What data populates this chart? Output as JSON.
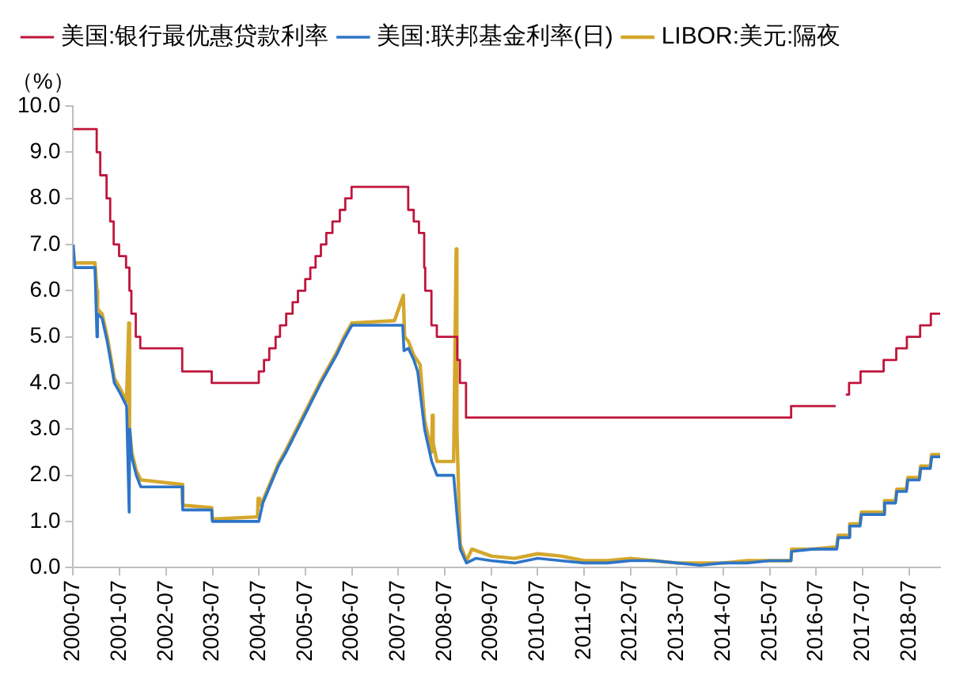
{
  "chart_data": {
    "type": "line",
    "ylabel": "（%）",
    "legend": "top",
    "grid": false,
    "xlim": [
      "2000-07",
      "2019-03"
    ],
    "xticks": [
      "2000-07",
      "2001-07",
      "2002-07",
      "2003-07",
      "2004-07",
      "2005-07",
      "2006-07",
      "2007-07",
      "2008-07",
      "2009-07",
      "2010-07",
      "2011-07",
      "2012-07",
      "2013-07",
      "2014-07",
      "2015-07",
      "2016-07",
      "2017-07",
      "2018-07"
    ],
    "ylim": [
      0,
      10
    ],
    "yticks": [
      {
        "value": 0,
        "label": "0.0"
      },
      {
        "value": 1,
        "label": "1.0"
      },
      {
        "value": 2,
        "label": "2.0"
      },
      {
        "value": 3,
        "label": "3.0"
      },
      {
        "value": 4,
        "label": "4.0"
      },
      {
        "value": 5,
        "label": "5.0"
      },
      {
        "value": 6,
        "label": "6.0"
      },
      {
        "value": 7,
        "label": "7.0"
      },
      {
        "value": 8,
        "label": "8.0"
      },
      {
        "value": 9,
        "label": "9.0"
      },
      {
        "value": 10,
        "label": "10.0"
      }
    ],
    "marker": "none",
    "line_style": "solid",
    "series": [
      {
        "name": "美国:银行最优惠贷款利率",
        "type": "step",
        "color": "#c0143c",
        "x": [
          "2000-07-01",
          "2001-01-03",
          "2001-01-31",
          "2001-03-20",
          "2001-04-18",
          "2001-05-15",
          "2001-06-27",
          "2001-08-21",
          "2001-09-17",
          "2001-10-02",
          "2001-11-06",
          "2001-12-11",
          "2002-11-06",
          "2003-06-25",
          "2004-06-30",
          "2004-08-10",
          "2004-09-21",
          "2004-11-10",
          "2004-12-14",
          "2005-02-02",
          "2005-03-22",
          "2005-05-03",
          "2005-06-30",
          "2005-08-09",
          "2005-09-20",
          "2005-11-01",
          "2005-12-13",
          "2006-01-31",
          "2006-03-28",
          "2006-05-10",
          "2006-06-29",
          "2007-09-18",
          "2007-10-31",
          "2007-12-11",
          "2008-01-22",
          "2008-01-30",
          "2008-03-18",
          "2008-04-30",
          "2008-10-08",
          "2008-10-29",
          "2008-12-16",
          "2015-12-16",
          "2016-12-01",
          "2017-01-15",
          "2017-02-20",
          "2017-03-15",
          "2017-06-14",
          "2017-12-13",
          "2018-03-21",
          "2018-06-13",
          "2018-09-26",
          "2018-12-19",
          "2019-03-01"
        ],
        "values": [
          9.5,
          9.0,
          8.5,
          8.0,
          7.5,
          7.0,
          6.75,
          6.5,
          6.0,
          5.5,
          5.0,
          4.75,
          4.25,
          4.0,
          4.25,
          4.5,
          4.75,
          5.0,
          5.25,
          5.5,
          5.75,
          6.0,
          6.25,
          6.5,
          6.75,
          7.0,
          7.25,
          7.5,
          7.75,
          8.0,
          8.25,
          7.75,
          7.5,
          7.25,
          6.5,
          6.0,
          5.25,
          5.0,
          4.5,
          4.0,
          3.25,
          3.5,
          3.5,
          null,
          3.75,
          4.0,
          4.25,
          4.5,
          4.75,
          5.0,
          5.25,
          5.5,
          5.5
        ]
      },
      {
        "name": "美国:联邦基金利率(日)",
        "color": "#2e75c8",
        "x": [
          "2000-07-01",
          "2000-07-15",
          "2000-12-20",
          "2001-01-05",
          "2001-01-10",
          "2001-02-15",
          "2001-03-25",
          "2001-04-20",
          "2001-05-20",
          "2001-07-01",
          "2001-08-25",
          "2001-09-15",
          "2001-09-20",
          "2001-10-05",
          "2001-11-10",
          "2001-12-15",
          "2002-06-01",
          "2002-11-06",
          "2002-11-10",
          "2003-06-25",
          "2003-06-30",
          "2004-06-30",
          "2004-08-01",
          "2004-10-01",
          "2004-12-01",
          "2005-02-01",
          "2005-05-01",
          "2005-08-01",
          "2005-11-01",
          "2006-01-01",
          "2006-03-01",
          "2006-05-01",
          "2006-07-01",
          "2007-08-05",
          "2007-08-15",
          "2007-09-20",
          "2007-11-01",
          "2007-12-01",
          "2008-01-25",
          "2008-03-20",
          "2008-05-01",
          "2008-09-10",
          "2008-10-10",
          "2008-11-01",
          "2008-12-20",
          "2009-03-01",
          "2009-07-01",
          "2010-01-01",
          "2010-07-01",
          "2011-01-01",
          "2011-07-01",
          "2012-01-01",
          "2012-07-01",
          "2013-01-01",
          "2013-07-01",
          "2014-01-01",
          "2014-07-01",
          "2015-01-01",
          "2015-07-01",
          "2015-12-15",
          "2015-12-20",
          "2016-06-01",
          "2016-12-10",
          "2016-12-20",
          "2017-03-10",
          "2017-03-20",
          "2017-06-10",
          "2017-06-20",
          "2017-12-10",
          "2017-12-20",
          "2018-03-15",
          "2018-03-25",
          "2018-06-10",
          "2018-06-20",
          "2018-09-20",
          "2018-09-30",
          "2018-12-15",
          "2018-12-25",
          "2019-03-01"
        ],
        "values": [
          7.0,
          6.5,
          6.5,
          5.0,
          5.5,
          5.4,
          4.9,
          4.5,
          4.0,
          3.8,
          3.5,
          1.2,
          3.0,
          2.4,
          2.0,
          1.75,
          1.75,
          1.75,
          1.25,
          1.25,
          1.0,
          1.0,
          1.4,
          1.8,
          2.2,
          2.5,
          3.0,
          3.5,
          4.0,
          4.3,
          4.6,
          4.95,
          5.25,
          5.25,
          4.7,
          4.75,
          4.5,
          4.25,
          3.0,
          2.3,
          2.0,
          2.0,
          1.0,
          0.4,
          0.1,
          0.2,
          0.15,
          0.1,
          0.2,
          0.15,
          0.1,
          0.1,
          0.15,
          0.15,
          0.1,
          0.05,
          0.1,
          0.1,
          0.15,
          0.15,
          0.35,
          0.4,
          0.4,
          0.65,
          0.65,
          0.9,
          0.9,
          1.15,
          1.15,
          1.4,
          1.4,
          1.65,
          1.65,
          1.9,
          1.9,
          2.15,
          2.15,
          2.4,
          2.4
        ]
      },
      {
        "name": "LIBOR:美元:隔夜",
        "color": "#d4a72c",
        "x": [
          "2000-07-01",
          "2000-12-20",
          "2001-01-05",
          "2001-01-10",
          "2001-02-15",
          "2001-03-25",
          "2001-04-20",
          "2001-05-20",
          "2001-07-01",
          "2001-08-25",
          "2001-09-12",
          "2001-09-18",
          "2001-10-05",
          "2001-11-10",
          "2001-12-15",
          "2002-11-06",
          "2002-11-10",
          "2003-06-25",
          "2003-06-30",
          "2004-06-20",
          "2004-06-25",
          "2004-07-05",
          "2004-08-01",
          "2004-10-01",
          "2004-12-01",
          "2005-02-01",
          "2005-05-01",
          "2005-08-01",
          "2005-11-01",
          "2006-01-01",
          "2006-03-01",
          "2006-05-01",
          "2006-07-01",
          "2007-06-01",
          "2007-08-10",
          "2007-08-20",
          "2007-09-20",
          "2007-11-01",
          "2007-12-20",
          "2008-01-25",
          "2008-03-20",
          "2008-03-25",
          "2008-04-01",
          "2008-05-01",
          "2008-09-10",
          "2008-09-30",
          "2008-10-05",
          "2008-10-20",
          "2008-11-01",
          "2008-12-20",
          "2009-02-01",
          "2009-07-01",
          "2010-01-01",
          "2010-07-01",
          "2011-01-01",
          "2011-07-01",
          "2012-01-01",
          "2012-07-01",
          "2013-01-01",
          "2013-07-01",
          "2014-01-01",
          "2014-07-01",
          "2015-01-01",
          "2015-07-01",
          "2015-12-15",
          "2015-12-20",
          "2016-06-01",
          "2016-12-10",
          "2016-12-20",
          "2017-03-10",
          "2017-03-20",
          "2017-06-10",
          "2017-06-20",
          "2017-12-10",
          "2017-12-20",
          "2018-03-15",
          "2018-03-25",
          "2018-06-10",
          "2018-06-20",
          "2018-09-20",
          "2018-09-30",
          "2018-12-15",
          "2018-12-25",
          "2019-03-01"
        ],
        "values": [
          6.6,
          6.6,
          6.0,
          5.6,
          5.5,
          5.0,
          4.6,
          4.1,
          3.9,
          3.6,
          5.3,
          3.0,
          2.5,
          2.1,
          1.9,
          1.8,
          1.35,
          1.3,
          1.05,
          1.1,
          1.5,
          1.35,
          1.45,
          1.85,
          2.25,
          2.55,
          3.05,
          3.55,
          4.05,
          4.35,
          4.65,
          5.0,
          5.3,
          5.35,
          5.9,
          5.0,
          4.9,
          4.6,
          4.4,
          3.2,
          2.5,
          3.3,
          2.7,
          2.3,
          2.3,
          6.9,
          3.0,
          1.5,
          0.5,
          0.15,
          0.4,
          0.25,
          0.2,
          0.3,
          0.25,
          0.15,
          0.15,
          0.2,
          0.15,
          0.1,
          0.1,
          0.1,
          0.15,
          0.15,
          0.15,
          0.4,
          0.4,
          0.45,
          0.7,
          0.7,
          0.95,
          0.95,
          1.2,
          1.2,
          1.45,
          1.45,
          1.7,
          1.7,
          1.95,
          1.95,
          2.2,
          2.2,
          2.45,
          2.45
        ]
      }
    ]
  }
}
